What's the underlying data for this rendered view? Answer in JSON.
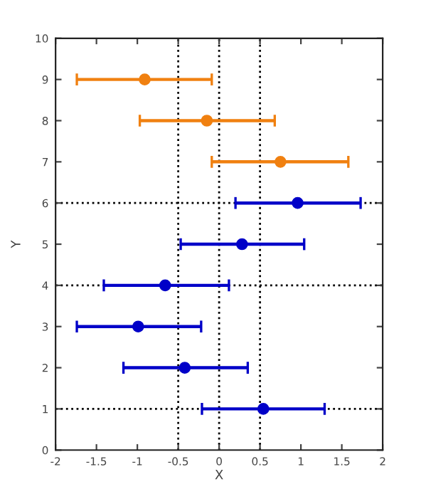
{
  "chart_data": {
    "type": "scatter",
    "xlabel": "X",
    "ylabel": "Y",
    "xlim": [
      -2,
      2
    ],
    "xticks": [
      -2,
      -1.5,
      -1,
      -0.5,
      0,
      0.5,
      1,
      1.5,
      2
    ],
    "ylim": [
      0,
      10
    ],
    "yticks": [
      0,
      1,
      2,
      3,
      4,
      5,
      6,
      7,
      8,
      9,
      10
    ],
    "grid": false,
    "marker": "circle",
    "legend": false,
    "series": [
      {
        "color": "#0000c8",
        "x": [
          0.54,
          -0.42,
          -0.99,
          -0.66,
          0.28,
          0.96
        ],
        "values": [
          1,
          2,
          3,
          4,
          5,
          6
        ],
        "xerrors": [
          [
            -0.21,
            1.29
          ],
          [
            -1.17,
            0.35
          ],
          [
            -1.74,
            -0.22
          ],
          [
            -1.41,
            0.12
          ],
          [
            -0.47,
            1.04
          ],
          [
            0.2,
            1.73
          ]
        ]
      },
      {
        "color": "#f08010",
        "x": [
          0.75,
          -0.15,
          -0.91
        ],
        "values": [
          7,
          8,
          9
        ],
        "xerrors": [
          [
            -0.09,
            1.58
          ],
          [
            -0.97,
            0.68
          ],
          [
            -1.74,
            -0.09
          ]
        ]
      }
    ],
    "ref_lines": [
      {
        "axis": "x",
        "value": -0.5,
        "color": "#000000",
        "line_style": "dotted"
      },
      {
        "axis": "x",
        "value": 0,
        "color": "#000000",
        "line_style": "dotted"
      },
      {
        "axis": "x",
        "value": 0.5,
        "color": "#000000",
        "line_style": "dotted"
      },
      {
        "axis": "y",
        "value": 1,
        "color": "#000000",
        "line_style": "dotted"
      },
      {
        "axis": "y",
        "value": 4,
        "color": "#000000",
        "line_style": "dotted"
      },
      {
        "axis": "y",
        "value": 6,
        "color": "#000000",
        "line_style": "dotted"
      }
    ]
  }
}
